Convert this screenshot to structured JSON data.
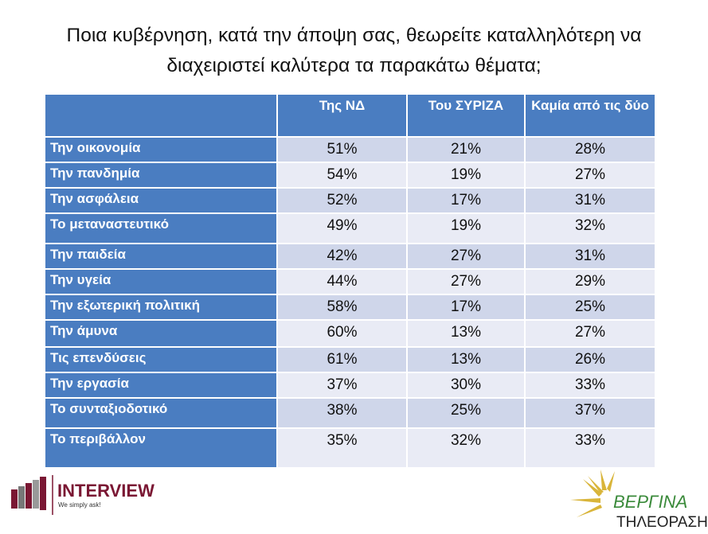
{
  "title_line1": "Ποια κυβέρνηση, κατά την άποψη σας, θεωρείτε καταλληλότερη να",
  "title_line2": "διαχειριστεί καλύτερα τα παρακάτω θέματα;",
  "table": {
    "headers": [
      "",
      "Της ΝΔ",
      "Του ΣΥΡΙΖΑ",
      "Καμία από τις δύο"
    ],
    "rows": [
      [
        "Την οικονομία",
        "51%",
        "21%",
        "28%"
      ],
      [
        "Την πανδημία",
        "54%",
        "19%",
        "27%"
      ],
      [
        "Την ασφάλεια",
        "52%",
        "17%",
        "31%"
      ],
      [
        "Το μεταναστευτικό",
        "49%",
        "19%",
        "32%"
      ],
      [
        "Την παιδεία",
        "42%",
        "27%",
        "31%"
      ],
      [
        "Την υγεία",
        "44%",
        "27%",
        "29%"
      ],
      [
        "Την εξωτερική πολιτική",
        "58%",
        "17%",
        "25%"
      ],
      [
        "Την άμυνα",
        "60%",
        "13%",
        "27%"
      ],
      [
        "Τις επενδύσεις",
        "61%",
        "13%",
        "26%"
      ],
      [
        "Την εργασία",
        "37%",
        "30%",
        "33%"
      ],
      [
        "Το συνταξιοδοτικό",
        "38%",
        "25%",
        "37%"
      ],
      [
        "Το περιβάλλον",
        "35%",
        "32%",
        "33%"
      ]
    ]
  },
  "logos": {
    "interview": "INTERVIEW",
    "interview_tagline": "We simply ask!",
    "vergina": "ΒΕΡΓΙΝΑ",
    "vergina_sub": "ΤΗΛΕΟΡΑΣΗ"
  },
  "colors": {
    "header": "#4a7dc1",
    "row_dark": "#cfd6ea",
    "row_light": "#e9ebf5",
    "interview": "#7a1733"
  }
}
